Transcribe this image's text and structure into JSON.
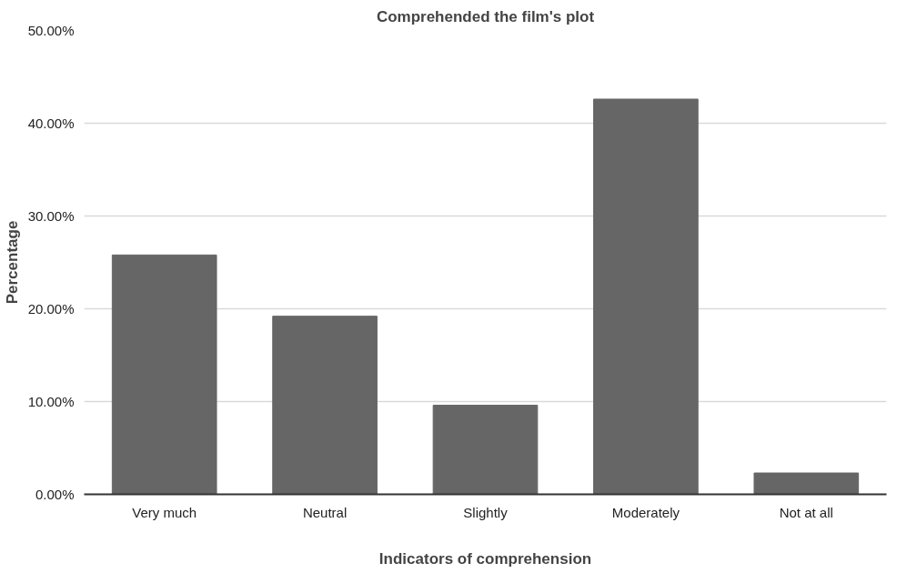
{
  "chart_data": {
    "type": "bar",
    "title": "Comprehended the film's plot",
    "xlabel": "Indicators of comprehension",
    "ylabel": "Percentage",
    "categories": [
      "Very much",
      "Neutral",
      "Slightly",
      "Moderately",
      "Not at all"
    ],
    "values": [
      25.8,
      19.2,
      9.6,
      42.6,
      2.3
    ],
    "color": "#666666",
    "ylim": [
      0,
      50
    ],
    "yticks": [
      {
        "value": 0,
        "label": "0.00%"
      },
      {
        "value": 10,
        "label": "10.00%"
      },
      {
        "value": 20,
        "label": "20.00%"
      },
      {
        "value": 30,
        "label": "30.00%"
      },
      {
        "value": 40,
        "label": "40.00%"
      },
      {
        "value": 50,
        "label": "50.00%"
      }
    ],
    "grid": "y"
  }
}
